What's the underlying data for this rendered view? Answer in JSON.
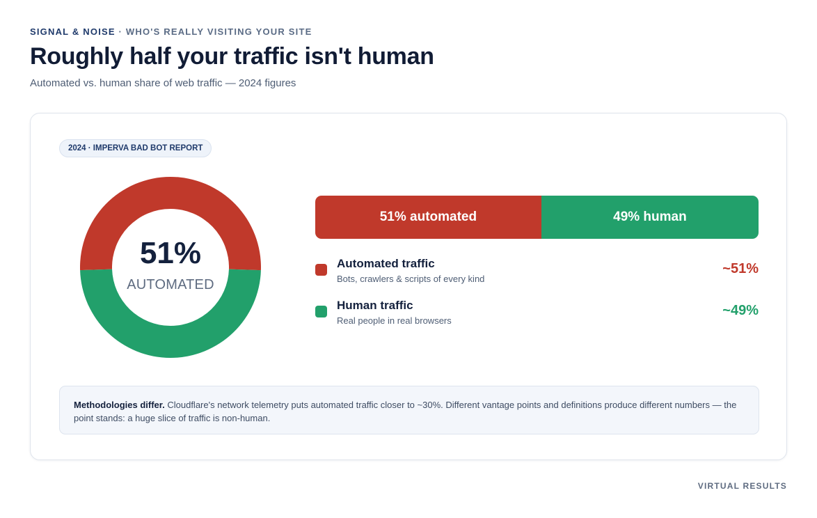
{
  "header": {
    "eyebrow_main": "SIGNAL & NOISE",
    "eyebrow_rest": " · WHO'S REALLY VISITING YOUR SITE",
    "title": "Roughly half your traffic isn't human",
    "subtitle": "Automated vs. human share of web traffic — 2024 figures"
  },
  "card": {
    "badge": "2024 · IMPERVA BAD BOT REPORT",
    "donut_center_value": "51%",
    "donut_center_label": "AUTOMATED"
  },
  "chart_data": {
    "type": "pie",
    "categories": [
      "Automated traffic",
      "Human traffic"
    ],
    "values": [
      51,
      49
    ],
    "unit": "%",
    "colors": [
      "#c0392b",
      "#22a06b"
    ],
    "segment_labels": [
      "51% automated",
      "49% human"
    ]
  },
  "legend": [
    {
      "title": "Automated traffic",
      "subtitle": "Bots, crawlers & scripts of every kind",
      "value": "~51%",
      "color": "#c0392b"
    },
    {
      "title": "Human traffic",
      "subtitle": "Real people in real browsers",
      "value": "~49%",
      "color": "#22a06b"
    }
  ],
  "note": {
    "lead": "Methodologies differ.",
    "body": " Cloudflare's network telemetry puts automated traffic closer to ~30%. Different vantage points and definitions produce different numbers — the point stands: a huge slice of traffic is non-human."
  },
  "footer": "VIRTUAL RESULTS"
}
